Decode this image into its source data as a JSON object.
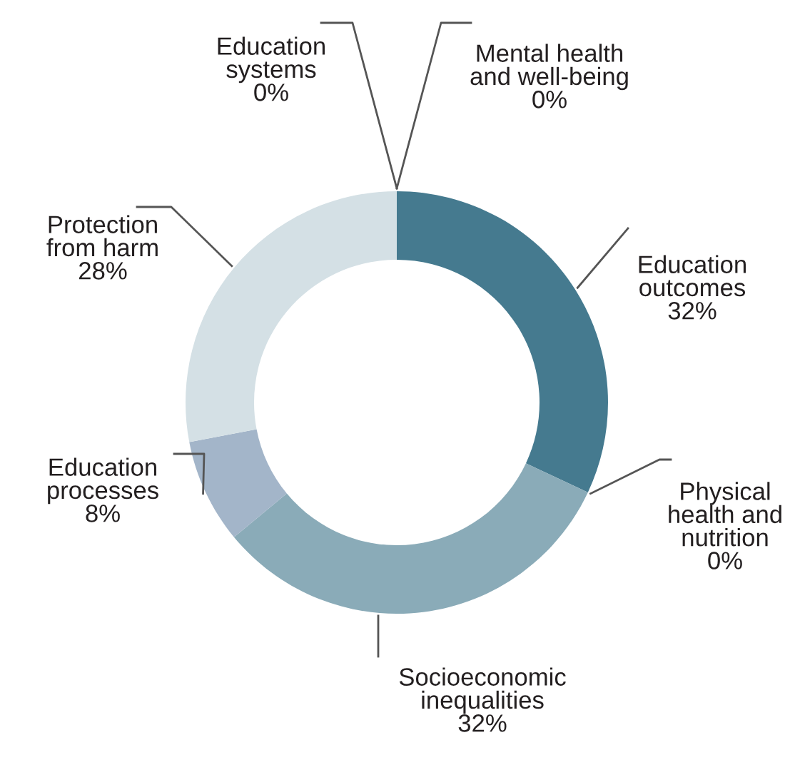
{
  "chart_data": {
    "type": "donut",
    "categories": [
      "Education\noutcomes",
      "Physical\nhealth and\nnutrition",
      "Socioeconomic\ninequalities",
      "Education\nprocesses",
      "Protection\nfrom harm",
      "Education\nsystems",
      "Mental health\nand well-being"
    ],
    "values": [
      32,
      0,
      32,
      8,
      28,
      0,
      0
    ],
    "value_labels": [
      "32%",
      "0%",
      "32%",
      "8%",
      "28%",
      "0%",
      "0%"
    ],
    "colors": [
      "#457a8f",
      "#6f95a5",
      "#8aabb8",
      "#a3b5c9",
      "#d4e0e5",
      "#c9d6dc",
      "#5d8799"
    ],
    "legend": false
  }
}
